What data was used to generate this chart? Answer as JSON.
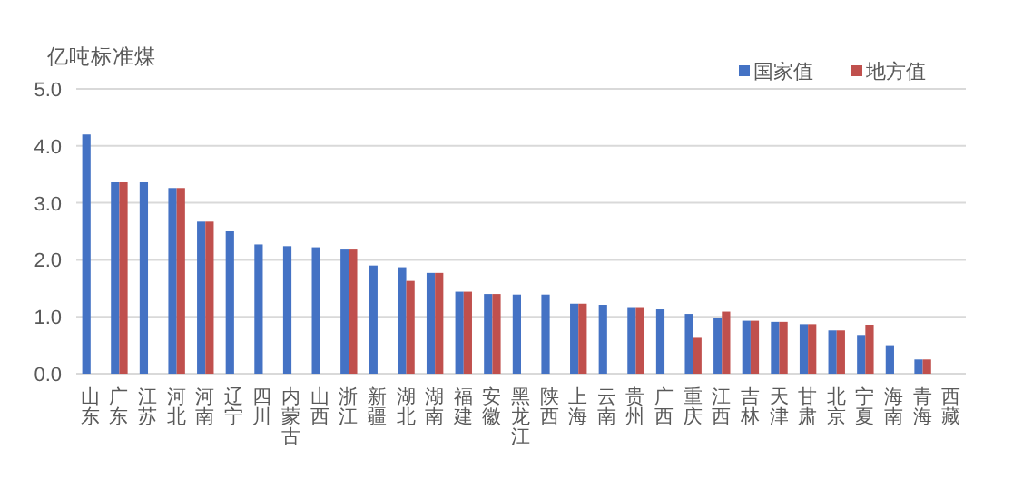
{
  "chart_data": {
    "type": "bar",
    "ylabel": "亿吨标准煤",
    "categories": [
      "山东",
      "广东",
      "江苏",
      "河北",
      "河南",
      "辽宁",
      "四川",
      "内蒙古",
      "山西",
      "浙江",
      "新疆",
      "湖北",
      "湖南",
      "福建",
      "安徽",
      "黑龙江",
      "陕西",
      "上海",
      "云南",
      "贵州",
      "广西",
      "重庆",
      "江西",
      "吉林",
      "天津",
      "甘肃",
      "北京",
      "宁夏",
      "海南",
      "青海",
      "西藏"
    ],
    "series": [
      {
        "name": "国家值",
        "color": "#4472c4",
        "values": [
          4.2,
          3.36,
          3.36,
          3.26,
          2.67,
          2.5,
          2.27,
          2.24,
          2.22,
          2.18,
          1.9,
          1.87,
          1.77,
          1.44,
          1.4,
          1.39,
          1.39,
          1.23,
          1.21,
          1.17,
          1.13,
          1.05,
          0.98,
          0.93,
          0.91,
          0.87,
          0.76,
          0.68,
          0.5,
          0.25,
          null
        ]
      },
      {
        "name": "地方值",
        "color": "#c0504d",
        "values": [
          null,
          3.36,
          null,
          3.26,
          2.67,
          null,
          null,
          null,
          null,
          2.18,
          null,
          1.63,
          1.77,
          1.44,
          1.4,
          null,
          null,
          1.23,
          null,
          1.17,
          null,
          0.63,
          1.09,
          0.93,
          0.91,
          0.87,
          0.76,
          0.86,
          null,
          0.25,
          null
        ]
      }
    ],
    "ylim": [
      0,
      5
    ],
    "yticks": [
      {
        "value": 0,
        "label": "0.0"
      },
      {
        "value": 1,
        "label": "1.0"
      },
      {
        "value": 2,
        "label": "2.0"
      },
      {
        "value": 3,
        "label": "3.0"
      },
      {
        "value": 4,
        "label": "4.0"
      },
      {
        "value": 5,
        "label": "5.0"
      }
    ],
    "grid": "y",
    "legend": "top right"
  }
}
